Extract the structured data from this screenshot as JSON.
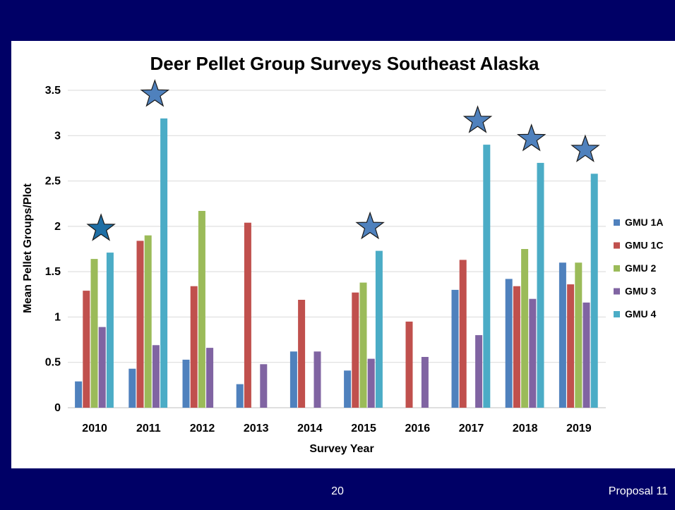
{
  "footer": {
    "page_number": "20",
    "proposal": "Proposal 11"
  },
  "colors": {
    "background": "#000066",
    "panel": "#ffffff",
    "star_fill": "#4f81bd",
    "star_fill_2010": "#1f6fa5"
  },
  "chart_data": {
    "type": "bar",
    "title": "Deer Pellet Group Surveys Southeast Alaska",
    "xlabel": "Survey Year",
    "ylabel": "Mean Pellet Groups/Plot",
    "ylim": [
      0,
      3.5
    ],
    "yticks": [
      "0",
      "0.5",
      "1",
      "1.5",
      "2",
      "2.5",
      "3",
      "3.5"
    ],
    "grid": true,
    "legend_position": "right",
    "categories": [
      "2010",
      "2011",
      "2012",
      "2013",
      "2014",
      "2015",
      "2016",
      "2017",
      "2018",
      "2019"
    ],
    "series": [
      {
        "name": "GMU 1A",
        "color": "#4f81bd",
        "values": [
          0.29,
          0.43,
          0.53,
          0.26,
          0.62,
          0.41,
          null,
          1.3,
          1.42,
          1.6
        ]
      },
      {
        "name": "GMU 1C",
        "color": "#c0504d",
        "values": [
          1.29,
          1.84,
          1.34,
          2.04,
          1.19,
          1.27,
          0.95,
          1.63,
          1.34,
          1.36
        ]
      },
      {
        "name": "GMU 2",
        "color": "#9bbb59",
        "values": [
          1.64,
          1.9,
          2.17,
          null,
          null,
          1.38,
          null,
          null,
          1.75,
          1.6
        ]
      },
      {
        "name": "GMU 3",
        "color": "#8064a2",
        "values": [
          0.89,
          0.69,
          0.66,
          0.48,
          0.62,
          0.54,
          0.56,
          0.8,
          1.2,
          1.16
        ]
      },
      {
        "name": "GMU 4",
        "color": "#4bacc6",
        "values": [
          1.71,
          3.19,
          null,
          null,
          null,
          1.73,
          null,
          2.9,
          2.7,
          2.58
        ]
      }
    ],
    "annotations": {
      "star_markers_on_years": [
        "2010",
        "2011",
        "2015",
        "2017",
        "2018",
        "2019"
      ]
    }
  }
}
